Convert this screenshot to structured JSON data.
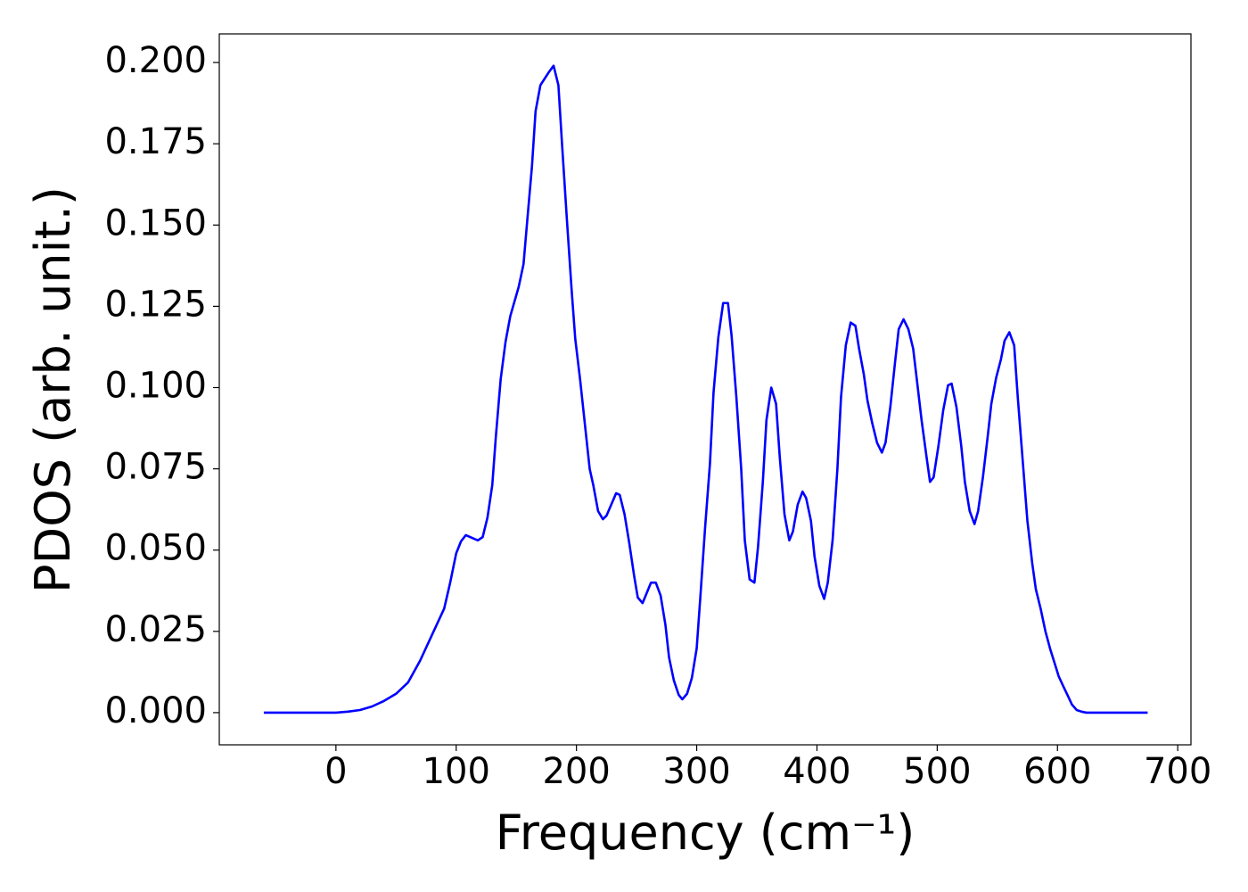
{
  "chart_data": {
    "type": "line",
    "xlabel": "Frequency (cm⁻¹)",
    "ylabel": "PDOS (arb. unit.)",
    "color": "#0000ff",
    "x": [
      -60,
      -40,
      -20,
      0,
      10,
      20,
      30,
      40,
      50,
      60,
      70,
      80,
      90,
      95,
      100,
      104,
      108,
      118,
      122,
      126,
      130,
      133,
      137,
      141,
      145,
      152,
      156,
      159,
      163,
      166,
      170,
      177,
      181,
      185,
      188,
      192,
      196,
      199,
      203,
      211,
      214,
      218,
      222,
      225,
      233,
      236,
      240,
      244,
      248,
      251,
      255,
      262,
      266,
      270,
      274,
      277,
      281,
      285,
      288,
      292,
      296,
      300,
      303,
      307,
      311,
      314,
      318,
      322,
      326,
      329,
      333,
      337,
      340,
      344,
      348,
      351,
      355,
      358,
      362,
      366,
      369,
      373,
      377,
      380,
      384,
      388,
      391,
      395,
      398,
      402,
      406,
      409,
      413,
      417,
      420,
      424,
      428,
      432,
      435,
      439,
      442,
      446,
      450,
      454,
      457,
      461,
      465,
      468,
      472,
      476,
      480,
      483,
      487,
      491,
      494,
      497,
      501,
      505,
      509,
      512,
      516,
      520,
      523,
      527,
      531,
      534,
      538,
      542,
      545,
      549,
      553,
      556,
      560,
      564,
      567,
      571,
      575,
      579,
      582,
      586,
      590,
      594,
      598,
      601,
      605,
      609,
      612,
      616,
      620,
      624,
      650,
      675
    ],
    "values": [
      0,
      0,
      0,
      0,
      0.0003,
      0.0008,
      0.0019,
      0.0036,
      0.0058,
      0.0093,
      0.016,
      0.024,
      0.032,
      0.04,
      0.049,
      0.0527,
      0.0546,
      0.053,
      0.054,
      0.06,
      0.07,
      0.085,
      0.1026,
      0.114,
      0.122,
      0.131,
      0.138,
      0.151,
      0.168,
      0.185,
      0.193,
      0.197,
      0.199,
      0.193,
      0.175,
      0.152,
      0.13,
      0.115,
      0.1026,
      0.075,
      0.07,
      0.062,
      0.0595,
      0.0606,
      0.0675,
      0.067,
      0.061,
      0.052,
      0.042,
      0.0354,
      0.0337,
      0.04,
      0.04,
      0.036,
      0.027,
      0.017,
      0.0099,
      0.0055,
      0.0041,
      0.0058,
      0.0107,
      0.0198,
      0.0354,
      0.057,
      0.0765,
      0.0985,
      0.1155,
      0.126,
      0.126,
      0.116,
      0.097,
      0.075,
      0.053,
      0.041,
      0.04,
      0.051,
      0.071,
      0.09,
      0.1,
      0.095,
      0.079,
      0.061,
      0.053,
      0.0557,
      0.064,
      0.068,
      0.066,
      0.059,
      0.048,
      0.039,
      0.035,
      0.04,
      0.053,
      0.075,
      0.097,
      0.113,
      0.12,
      0.119,
      0.112,
      0.104,
      0.096,
      0.089,
      0.083,
      0.08,
      0.083,
      0.094,
      0.108,
      0.118,
      0.121,
      0.118,
      0.112,
      0.1026,
      0.09,
      0.079,
      0.071,
      0.0724,
      0.082,
      0.093,
      0.1007,
      0.1012,
      0.094,
      0.082,
      0.071,
      0.062,
      0.058,
      0.062,
      0.0724,
      0.085,
      0.095,
      0.103,
      0.1087,
      0.1144,
      0.117,
      0.113,
      0.097,
      0.078,
      0.059,
      0.046,
      0.038,
      0.032,
      0.025,
      0.0195,
      0.0148,
      0.0112,
      0.008,
      0.0049,
      0.0025,
      0.0008,
      0.0003,
      0,
      0,
      0
    ],
    "xlim": [
      -97,
      711
    ],
    "ylim": [
      -0.0099,
      0.2088
    ],
    "xticks": [
      0,
      100,
      200,
      300,
      400,
      500,
      600,
      700
    ],
    "yticks": [
      {
        "value": 0,
        "label": "0.000"
      },
      {
        "value": 0.025,
        "label": "0.025"
      },
      {
        "value": 0.05,
        "label": "0.050"
      },
      {
        "value": 0.075,
        "label": "0.075"
      },
      {
        "value": 0.1,
        "label": "0.100"
      },
      {
        "value": 0.125,
        "label": "0.125"
      },
      {
        "value": 0.15,
        "label": "0.150"
      },
      {
        "value": 0.175,
        "label": "0.175"
      },
      {
        "value": 0.2,
        "label": "0.200"
      }
    ],
    "grid": false
  }
}
